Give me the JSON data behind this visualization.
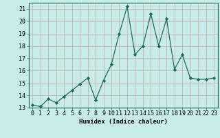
{
  "x": [
    0,
    1,
    2,
    3,
    4,
    5,
    6,
    7,
    8,
    9,
    10,
    11,
    12,
    13,
    14,
    15,
    16,
    17,
    18,
    19,
    20,
    21,
    22,
    23
  ],
  "y": [
    13.2,
    13.1,
    13.7,
    13.4,
    13.9,
    14.4,
    14.9,
    15.4,
    13.6,
    15.2,
    16.5,
    19.0,
    21.2,
    17.3,
    18.0,
    20.6,
    18.0,
    20.2,
    16.1,
    17.3,
    15.4,
    15.3,
    15.3,
    15.4
  ],
  "line_color": "#1a6b5a",
  "marker": "D",
  "marker_size": 2.2,
  "bg_color": "#c8ecea",
  "grid_color": "#c8a8a8",
  "xlabel": "Humidex (Indice chaleur)",
  "ylim": [
    13,
    21.5
  ],
  "xlim": [
    -0.5,
    23.5
  ],
  "yticks": [
    13,
    14,
    15,
    16,
    17,
    18,
    19,
    20,
    21
  ],
  "xticks": [
    0,
    1,
    2,
    3,
    4,
    5,
    6,
    7,
    8,
    9,
    10,
    11,
    12,
    13,
    14,
    15,
    16,
    17,
    18,
    19,
    20,
    21,
    22,
    23
  ],
  "xtick_labels": [
    "0",
    "1",
    "2",
    "3",
    "4",
    "5",
    "6",
    "7",
    "8",
    "9",
    "10",
    "11",
    "12",
    "13",
    "14",
    "15",
    "16",
    "17",
    "18",
    "19",
    "20",
    "21",
    "22",
    "23"
  ],
  "label_fontsize": 6.5,
  "tick_fontsize": 6.0
}
